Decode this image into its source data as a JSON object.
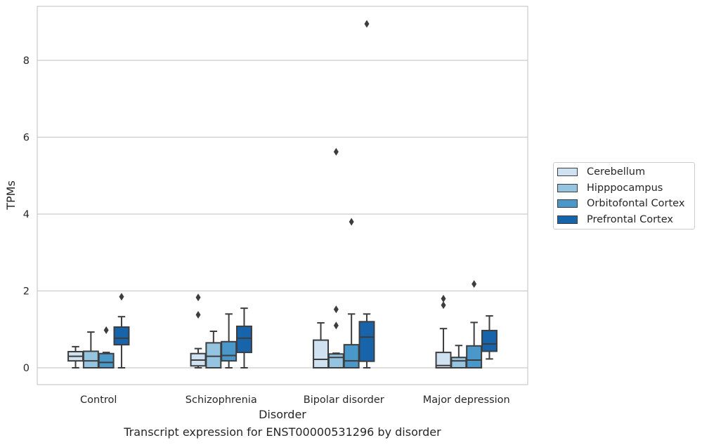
{
  "caption": "Transcript expression for ENST00000531296 by disorder",
  "chart_data": {
    "type": "box",
    "xlabel": "Disorder",
    "ylabel": "TPMs",
    "categories": [
      "Control",
      "Schizophrenia",
      "Bipolar disorder",
      "Major depression"
    ],
    "yticks": [
      0,
      2,
      4,
      6,
      8
    ],
    "ylim": [
      -0.44,
      9.3
    ],
    "grid": "horizontal",
    "legend_position": "right",
    "series": [
      {
        "name": "Cerebellum",
        "color": "#d0e1f2",
        "boxes": [
          {
            "whisker_low": 0.0,
            "q1": 0.18,
            "median": 0.3,
            "q3": 0.42,
            "whisker_high": 0.55,
            "outliers": []
          },
          {
            "whisker_low": 0.0,
            "q1": 0.05,
            "median": 0.2,
            "q3": 0.37,
            "whisker_high": 0.5,
            "outliers": [
              1.83,
              1.38
            ]
          },
          {
            "whisker_low": 0.0,
            "q1": 0.0,
            "median": 0.22,
            "q3": 0.72,
            "whisker_high": 1.17,
            "outliers": []
          },
          {
            "whisker_low": 0.0,
            "q1": 0.0,
            "median": 0.06,
            "q3": 0.4,
            "whisker_high": 1.02,
            "outliers": [
              1.8,
              1.63
            ]
          }
        ]
      },
      {
        "name": "Hipppocampus",
        "color": "#94c4df",
        "boxes": [
          {
            "whisker_low": 0.0,
            "q1": 0.0,
            "median": 0.18,
            "q3": 0.43,
            "whisker_high": 0.93,
            "outliers": []
          },
          {
            "whisker_low": 0.0,
            "q1": 0.0,
            "median": 0.3,
            "q3": 0.65,
            "whisker_high": 0.95,
            "outliers": []
          },
          {
            "whisker_low": 0.0,
            "q1": 0.0,
            "median": 0.27,
            "q3": 0.36,
            "whisker_high": 0.38,
            "outliers": [
              5.62,
              1.52,
              1.1
            ]
          },
          {
            "whisker_low": 0.0,
            "q1": 0.0,
            "median": 0.18,
            "q3": 0.27,
            "whisker_high": 0.58,
            "outliers": []
          }
        ]
      },
      {
        "name": "Orbitofontal Cortex",
        "color": "#4a98c9",
        "boxes": [
          {
            "whisker_low": 0.0,
            "q1": 0.0,
            "median": 0.14,
            "q3": 0.37,
            "whisker_high": 0.4,
            "outliers": [
              0.98
            ]
          },
          {
            "whisker_low": 0.0,
            "q1": 0.18,
            "median": 0.32,
            "q3": 0.68,
            "whisker_high": 1.4,
            "outliers": []
          },
          {
            "whisker_low": 0.0,
            "q1": 0.0,
            "median": 0.18,
            "q3": 0.6,
            "whisker_high": 1.4,
            "outliers": [
              3.8
            ]
          },
          {
            "whisker_low": 0.0,
            "q1": 0.0,
            "median": 0.2,
            "q3": 0.57,
            "whisker_high": 1.18,
            "outliers": [
              2.18
            ]
          }
        ]
      },
      {
        "name": "Prefrontal Cortex",
        "color": "#1764ab",
        "boxes": [
          {
            "whisker_low": 0.0,
            "q1": 0.6,
            "median": 0.77,
            "q3": 1.06,
            "whisker_high": 1.33,
            "outliers": [
              1.85
            ]
          },
          {
            "whisker_low": 0.0,
            "q1": 0.4,
            "median": 0.77,
            "q3": 1.08,
            "whisker_high": 1.55,
            "outliers": []
          },
          {
            "whisker_low": 0.0,
            "q1": 0.17,
            "median": 0.8,
            "q3": 1.2,
            "whisker_high": 1.4,
            "outliers": [
              8.95
            ]
          },
          {
            "whisker_low": 0.23,
            "q1": 0.43,
            "median": 0.62,
            "q3": 0.97,
            "whisker_high": 1.35,
            "outliers": []
          }
        ]
      }
    ]
  }
}
